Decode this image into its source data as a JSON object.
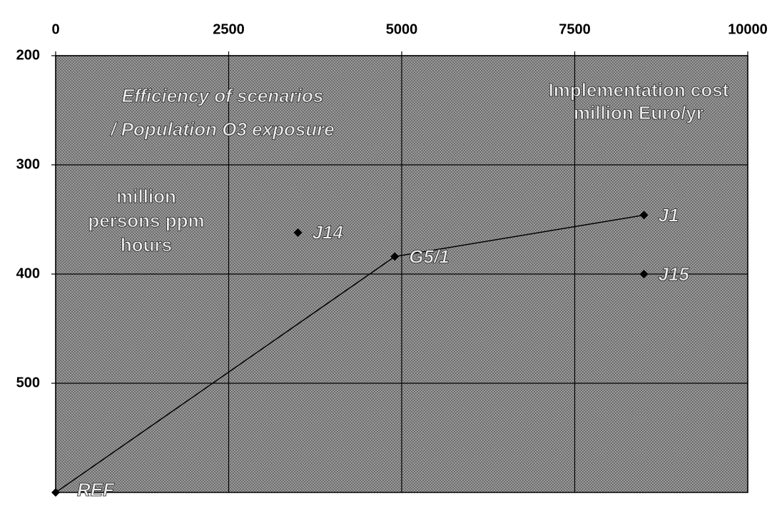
{
  "chart_data": {
    "type": "scatter",
    "title": [
      "Efficiency of scenarios",
      "/ Population O3 exposure"
    ],
    "ylabel": [
      "million",
      "persons ppm",
      "hours"
    ],
    "xlabel": [
      "Implementation cost",
      "million Euro/yr"
    ],
    "xlim": [
      0,
      10000
    ],
    "xticks": [
      0,
      2500,
      5000,
      7500,
      10000
    ],
    "ylim": [
      200,
      600
    ],
    "yticks": [
      200,
      300,
      400,
      500
    ],
    "y_inverted": true,
    "grid": true,
    "series": [
      {
        "color": "#000000",
        "line": true,
        "x": [
          0,
          4900,
          8500
        ],
        "y": [
          600,
          384,
          346
        ],
        "labels": [
          "REF",
          "G5/1",
          "J1"
        ]
      },
      {
        "color": "#000000",
        "line": false,
        "x": [
          3500,
          8500
        ],
        "y": [
          362,
          400
        ],
        "labels": [
          "J14",
          "J15"
        ]
      }
    ]
  }
}
